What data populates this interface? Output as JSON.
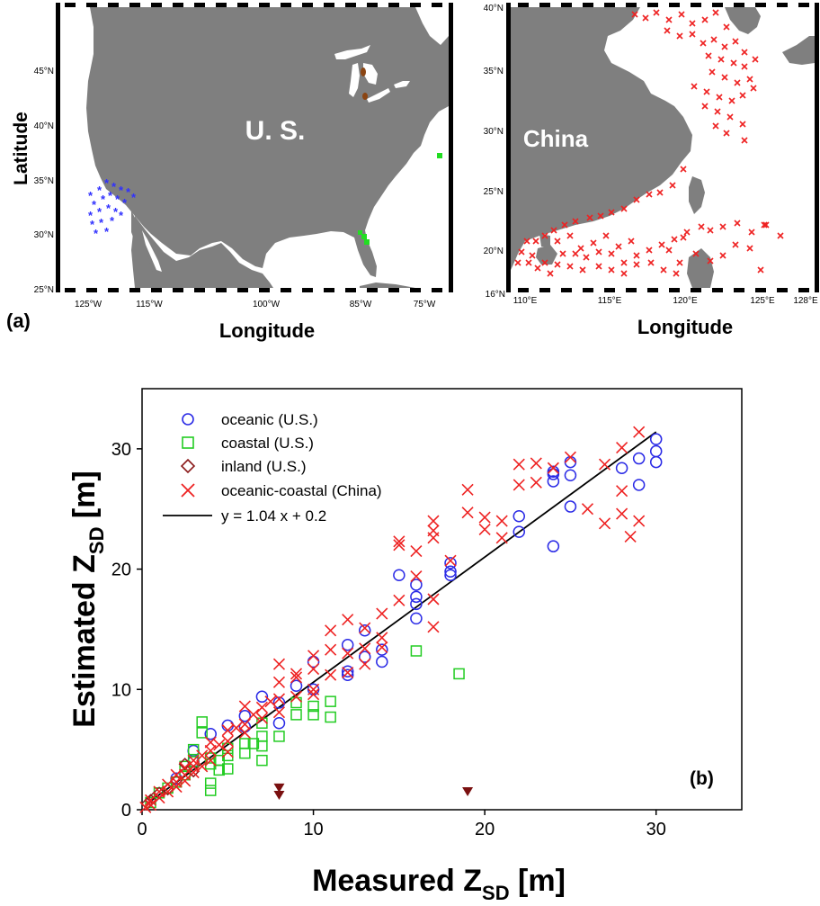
{
  "panel_a": {
    "label": "(a)",
    "us_map": {
      "ylabel": "Latitude",
      "xlabel": "Longitude",
      "country_label": "U. S.",
      "lat_ticks": [
        "25°N",
        "30°N",
        "35°N",
        "40°N",
        "45°N"
      ],
      "lon_ticks": [
        "125°W",
        "115°W",
        "100°W",
        "85°W",
        "75°W"
      ],
      "colors": {
        "land": "#7f7f7f",
        "water": "#ffffff",
        "oceanic": "#3030ff",
        "coastal": "#22dd22",
        "inland": "#8b4513"
      }
    },
    "china_map": {
      "xlabel": "Longitude",
      "country_label": "China",
      "lat_ticks": [
        "16°N",
        "20°N",
        "25°N",
        "30°N",
        "35°N",
        "40°N"
      ],
      "lon_ticks": [
        "110°E",
        "115°E",
        "120°E",
        "125°E",
        "128°E"
      ],
      "colors": {
        "land": "#7f7f7f",
        "stations": "#ee2222"
      }
    }
  },
  "panel_b": {
    "label": "(b)",
    "legend": [
      {
        "label": "oceanic (U.S.)",
        "marker": "circle",
        "color": "#2a2ae6"
      },
      {
        "label": "coastal (U.S.)",
        "marker": "square",
        "color": "#22cc22"
      },
      {
        "label": "inland (U.S.)",
        "marker": "diamond",
        "color": "#8b1a1a"
      },
      {
        "label": "oceanic-coastal (China)",
        "marker": "x",
        "color": "#ee2222"
      },
      {
        "label": "y = 1.04 x + 0.2",
        "marker": "line",
        "color": "#000000"
      }
    ],
    "xlabel_main": "Measured  Z",
    "xlabel_sub": "SD",
    "xlabel_unit": "  [m]",
    "ylabel_main": "Estimated Z",
    "ylabel_sub": "SD",
    "ylabel_unit": "  [m]",
    "x_ticks": [
      "0",
      "10",
      "20",
      "30"
    ],
    "y_ticks": [
      "0",
      "10",
      "20",
      "30"
    ]
  },
  "chart_data": [
    {
      "type": "scatter",
      "title": "",
      "xlabel": "Measured Z_SD [m]",
      "ylabel": "Estimated Z_SD [m]",
      "xlim": [
        0,
        35
      ],
      "ylim": [
        0,
        35
      ],
      "grid": false,
      "legend_position": "top-left",
      "fit_line": {
        "slope": 1.04,
        "intercept": 0.2,
        "x_range": [
          0,
          30
        ]
      },
      "series": [
        {
          "name": "oceanic (U.S.)",
          "marker": "circle",
          "points": [
            [
              30,
              30.8
            ],
            [
              30,
              29.8
            ],
            [
              30,
              28.9
            ],
            [
              29,
              29.2
            ],
            [
              29,
              27
            ],
            [
              28,
              28.4
            ],
            [
              25,
              28.9
            ],
            [
              25,
              27.8
            ],
            [
              25,
              25.2
            ],
            [
              24,
              28.1
            ],
            [
              24,
              27.9
            ],
            [
              24,
              27.3
            ],
            [
              24,
              21.9
            ],
            [
              22,
              24.4
            ],
            [
              22,
              23.1
            ],
            [
              18,
              20.5
            ],
            [
              18,
              19.8
            ],
            [
              18,
              19.5
            ],
            [
              16,
              18.7
            ],
            [
              16,
              17.7
            ],
            [
              16,
              17.1
            ],
            [
              16,
              15.9
            ],
            [
              15,
              19.5
            ],
            [
              14,
              13.3
            ],
            [
              14,
              12.3
            ],
            [
              13,
              14.9
            ],
            [
              13,
              12.7
            ],
            [
              12,
              13.7
            ],
            [
              12,
              11.5
            ],
            [
              12,
              11.2
            ],
            [
              10,
              12.3
            ],
            [
              10,
              10
            ],
            [
              9,
              10.3
            ],
            [
              8,
              8.9
            ],
            [
              8,
              7.2
            ],
            [
              7,
              9.4
            ],
            [
              6,
              7.8
            ],
            [
              6,
              6.9
            ],
            [
              5,
              7
            ],
            [
              4,
              6.3
            ],
            [
              3,
              4.9
            ],
            [
              3,
              4
            ],
            [
              2,
              2.6
            ]
          ]
        },
        {
          "name": "coastal (U.S.)",
          "marker": "square",
          "points": [
            [
              18.5,
              11.3
            ],
            [
              16,
              13.2
            ],
            [
              11,
              9
            ],
            [
              11,
              7.7
            ],
            [
              10,
              8.6
            ],
            [
              10,
              7.9
            ],
            [
              9,
              7.9
            ],
            [
              9,
              8.9
            ],
            [
              8,
              6.1
            ],
            [
              7,
              7.2
            ],
            [
              7,
              6.1
            ],
            [
              7,
              5.3
            ],
            [
              7,
              4.1
            ],
            [
              6.5,
              5.5
            ],
            [
              6,
              5.5
            ],
            [
              6,
              4.7
            ],
            [
              5,
              5.1
            ],
            [
              5,
              4.5
            ],
            [
              5,
              3.4
            ],
            [
              4.5,
              4.1
            ],
            [
              4.5,
              3.3
            ],
            [
              4,
              4.3
            ],
            [
              4,
              3.8
            ],
            [
              4,
              2.2
            ],
            [
              4,
              1.6
            ],
            [
              3.5,
              7.3
            ],
            [
              3.5,
              6.4
            ],
            [
              3,
              5
            ],
            [
              3,
              4
            ],
            [
              2.5,
              3.6
            ],
            [
              2.5,
              2.9
            ],
            [
              2,
              2.3
            ],
            [
              1.5,
              1.8
            ],
            [
              1,
              1.4
            ],
            [
              0.5,
              0.6
            ]
          ]
        },
        {
          "name": "inland (U.S.)",
          "marker": "diamond",
          "points": [
            [
              0.3,
              0.5
            ],
            [
              0.5,
              0.8
            ],
            [
              0.7,
              1
            ],
            [
              1,
              1.4
            ],
            [
              1.5,
              1.7
            ],
            [
              2,
              2.4
            ],
            [
              2.5,
              3.8
            ],
            [
              3,
              3.2
            ]
          ]
        },
        {
          "name": "oceanic-coastal (China)",
          "marker": "x",
          "points": [
            [
              29,
              31.4
            ],
            [
              28,
              30.1
            ],
            [
              27,
              28.7
            ],
            [
              28,
              26.5
            ],
            [
              28,
              24.6
            ],
            [
              29,
              24
            ],
            [
              28.5,
              22.7
            ],
            [
              27,
              23.8
            ],
            [
              26,
              25
            ],
            [
              25,
              29.3
            ],
            [
              24,
              28.4
            ],
            [
              23,
              28.8
            ],
            [
              23,
              27.2
            ],
            [
              22,
              28.7
            ],
            [
              22,
              27
            ],
            [
              21,
              24
            ],
            [
              21,
              22.6
            ],
            [
              20,
              24.3
            ],
            [
              20,
              23.3
            ],
            [
              19,
              26.6
            ],
            [
              19,
              24.7
            ],
            [
              18,
              20.7
            ],
            [
              17,
              24
            ],
            [
              17,
              23.2
            ],
            [
              17,
              22.6
            ],
            [
              17,
              17.5
            ],
            [
              17,
              15.2
            ],
            [
              16,
              21.5
            ],
            [
              16,
              19.4
            ],
            [
              15,
              22.3
            ],
            [
              15,
              22
            ],
            [
              15,
              17.4
            ],
            [
              14,
              16.3
            ],
            [
              14,
              14.3
            ],
            [
              14,
              13.5
            ],
            [
              13,
              15.1
            ],
            [
              13,
              13.4
            ],
            [
              13,
              12.1
            ],
            [
              12,
              15.8
            ],
            [
              12,
              13
            ],
            [
              12,
              11.4
            ],
            [
              11,
              14.9
            ],
            [
              11,
              13.3
            ],
            [
              11,
              11.2
            ],
            [
              10,
              12.8
            ],
            [
              10,
              11.7
            ],
            [
              10,
              10
            ],
            [
              10,
              9.6
            ],
            [
              9,
              11.3
            ],
            [
              9,
              11
            ],
            [
              9,
              9.4
            ],
            [
              8,
              12.1
            ],
            [
              8,
              10.6
            ],
            [
              8,
              9.2
            ],
            [
              8,
              8.1
            ],
            [
              7.5,
              9
            ],
            [
              7,
              8.5
            ],
            [
              7,
              7.6
            ],
            [
              6.5,
              7.9
            ],
            [
              6,
              8.6
            ],
            [
              6,
              7.1
            ],
            [
              6,
              6.4
            ],
            [
              5.5,
              6.8
            ],
            [
              5,
              6.6
            ],
            [
              5,
              5.7
            ],
            [
              5,
              4.8
            ],
            [
              4.5,
              5.4
            ],
            [
              4,
              5.6
            ],
            [
              4,
              4.9
            ],
            [
              4,
              4.1
            ],
            [
              3.5,
              4.5
            ],
            [
              3.5,
              3.6
            ],
            [
              3,
              4.1
            ],
            [
              3,
              3.6
            ],
            [
              3,
              3.1
            ],
            [
              2.5,
              3.5
            ],
            [
              2.5,
              2.9
            ],
            [
              2.5,
              2.4
            ],
            [
              2,
              2.9
            ],
            [
              2,
              2.3
            ],
            [
              2,
              1.9
            ],
            [
              1.5,
              2.1
            ],
            [
              1.5,
              1.5
            ],
            [
              1,
              1.5
            ],
            [
              1,
              1
            ],
            [
              0.5,
              0.8
            ],
            [
              0.5,
              0.4
            ],
            [
              0.2,
              0.2
            ]
          ]
        },
        {
          "name": "",
          "marker": "triangle-down",
          "points": [
            [
              8,
              1.8
            ],
            [
              8,
              1.2
            ],
            [
              19,
              1.5
            ]
          ]
        }
      ]
    }
  ]
}
